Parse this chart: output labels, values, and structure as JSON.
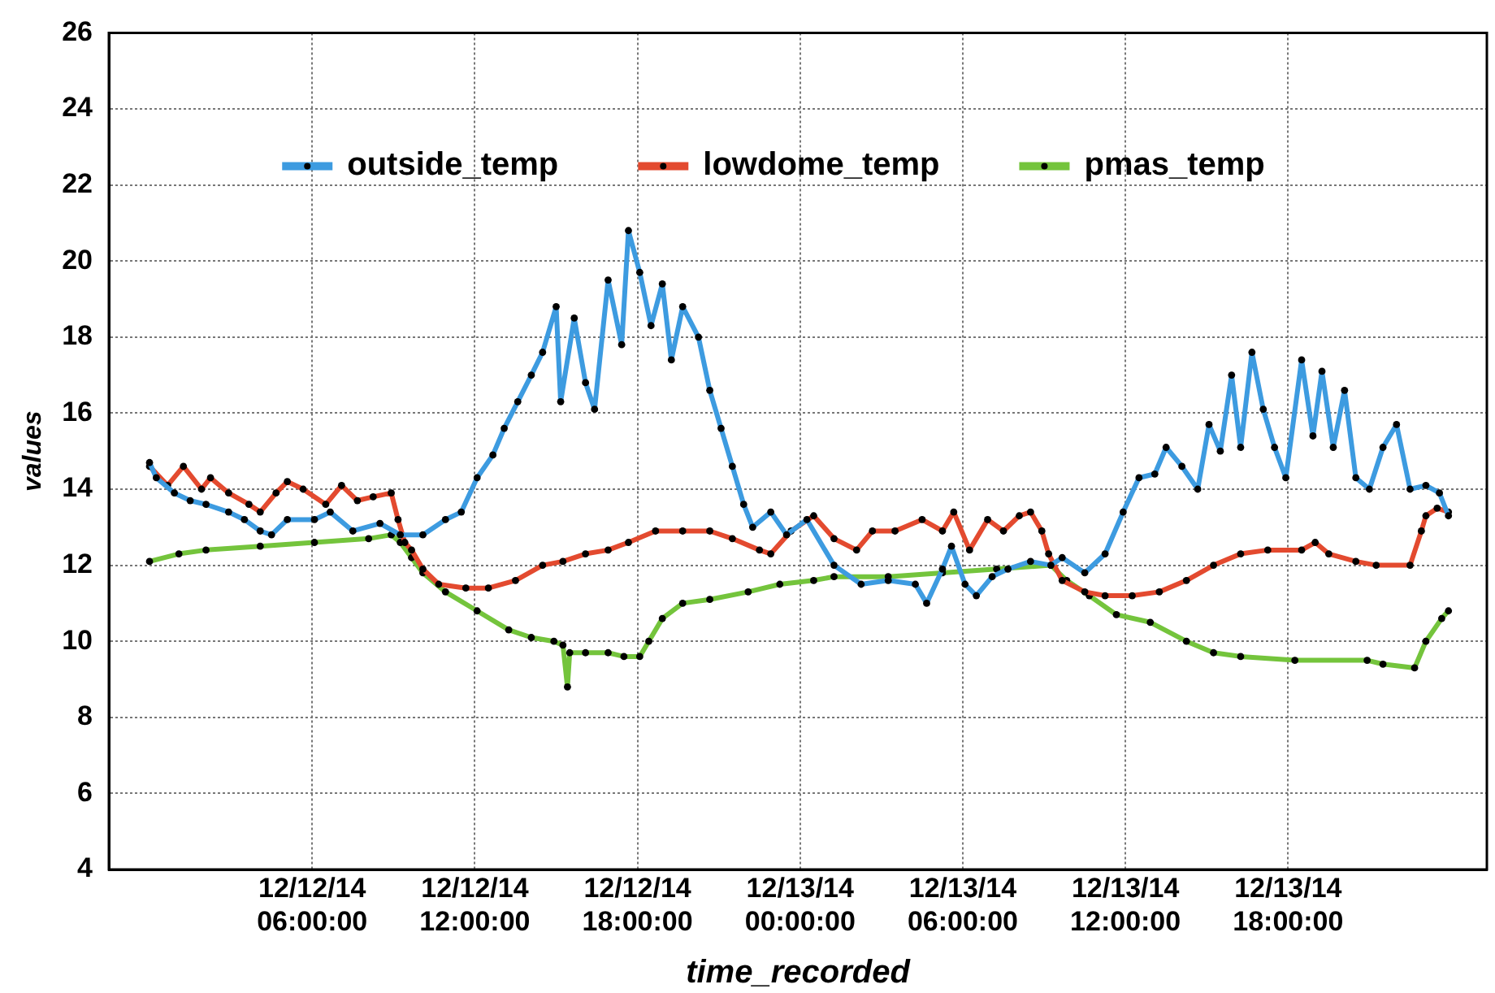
{
  "chart_data": {
    "type": "line",
    "xlabel": "time_recorded",
    "ylabel": "values",
    "xlim": [
      "--12-11T22:30",
      "--12-14T01:20"
    ],
    "xticks": [
      {
        "value": "--12-12T06:00",
        "label": "12/12/14 06:00:00"
      },
      {
        "value": "--12-12T12:00",
        "label": "12/12/14 12:00:00"
      },
      {
        "value": "--12-12T18:00",
        "label": "12/12/14 18:00:00"
      },
      {
        "value": "--12-13T00:00",
        "label": "12/13/14 00:00:00"
      },
      {
        "value": "--12-13T06:00",
        "label": "12/13/14 06:00:00"
      },
      {
        "value": "--12-13T12:00",
        "label": "12/13/14 12:00:00"
      },
      {
        "value": "--12-13T18:00",
        "label": "12/13/14 18:00:00"
      }
    ],
    "ylim": [
      4,
      26
    ],
    "yticks": [
      4,
      6,
      8,
      10,
      12,
      14,
      16,
      18,
      20,
      22,
      24,
      26
    ],
    "grid": true,
    "legend": "top",
    "marker": "circle",
    "series": [
      {
        "name": "outside_temp",
        "color": "#3d9be0",
        "x": [
          "--12-12T00:00",
          "--12-12T00:15",
          "--12-12T00:55",
          "--12-12T01:30",
          "--12-12T02:05",
          "--12-12T02:55",
          "--12-12T03:30",
          "--12-12T04:05",
          "--12-12T04:30",
          "--12-12T05:05",
          "--12-12T06:05",
          "--12-12T06:40",
          "--12-12T07:30",
          "--12-12T08:30",
          "--12-12T09:15",
          "--12-12T10:05",
          "--12-12T10:55",
          "--12-12T11:30",
          "--12-12T12:05",
          "--12-12T12:40",
          "--12-12T13:05",
          "--12-12T13:35",
          "--12-12T14:05",
          "--12-12T14:30",
          "--12-12T15:00",
          "--12-12T15:10",
          "--12-12T15:40",
          "--12-12T16:05",
          "--12-12T16:25",
          "--12-12T16:55",
          "--12-12T17:25",
          "--12-12T17:40",
          "--12-12T18:05",
          "--12-12T18:30",
          "--12-12T18:55",
          "--12-12T19:15",
          "--12-12T19:40",
          "--12-12T20:15",
          "--12-12T20:40",
          "--12-12T21:05",
          "--12-12T21:30",
          "--12-12T21:55",
          "--12-12T22:15",
          "--12-12T22:55",
          "--12-12T23:30",
          "--12-13T00:15",
          "--12-13T01:15",
          "--12-13T02:15",
          "--12-13T03:15",
          "--12-13T04:15",
          "--12-13T04:40",
          "--12-13T05:15",
          "--12-13T05:35",
          "--12-13T06:05",
          "--12-13T06:30",
          "--12-13T07:05",
          "--12-13T07:40",
          "--12-13T08:30",
          "--12-13T09:15",
          "--12-13T09:40",
          "--12-13T10:30",
          "--12-13T11:15",
          "--12-13T11:55",
          "--12-13T12:30",
          "--12-13T13:05",
          "--12-13T13:30",
          "--12-13T14:05",
          "--12-13T14:40",
          "--12-13T15:05",
          "--12-13T15:30",
          "--12-13T15:55",
          "--12-13T16:15",
          "--12-13T16:40",
          "--12-13T17:05",
          "--12-13T17:30",
          "--12-13T17:55",
          "--12-13T18:30",
          "--12-13T18:55",
          "--12-13T19:15",
          "--12-13T19:40",
          "--12-13T20:05",
          "--12-13T20:30",
          "--12-13T21:00",
          "--12-13T21:30",
          "--12-13T22:00",
          "--12-13T22:30",
          "--12-13T23:05",
          "--12-13T23:35",
          "--12-13T23:55"
        ],
        "values": [
          14.7,
          14.3,
          13.9,
          13.7,
          13.6,
          13.4,
          13.2,
          12.9,
          12.8,
          13.2,
          13.2,
          13.4,
          12.9,
          13.1,
          12.8,
          12.8,
          13.2,
          13.4,
          14.3,
          14.9,
          15.6,
          16.3,
          17.0,
          17.6,
          18.8,
          16.3,
          18.5,
          16.8,
          16.1,
          19.5,
          17.8,
          20.8,
          19.7,
          18.3,
          19.4,
          17.4,
          18.8,
          18.0,
          16.6,
          15.6,
          14.6,
          13.6,
          13.0,
          13.4,
          12.8,
          13.2,
          12.0,
          11.5,
          11.6,
          11.5,
          11.0,
          11.9,
          12.5,
          11.5,
          11.2,
          11.7,
          11.9,
          12.1,
          12.0,
          12.2,
          11.8,
          12.3,
          13.4,
          14.3,
          14.4,
          15.1,
          14.6,
          14.0,
          15.7,
          15.0,
          17.0,
          15.1,
          17.6,
          16.1,
          15.1,
          14.3,
          17.4,
          15.4,
          17.1,
          15.1,
          16.6,
          14.3,
          14.0,
          15.1,
          15.7,
          14.0,
          14.1,
          13.9,
          13.3
        ]
      },
      {
        "name": "lowdome_temp",
        "color": "#e34a2f",
        "x": [
          "--12-12T00:00",
          "--12-12T00:40",
          "--12-12T01:15",
          "--12-12T01:55",
          "--12-12T02:15",
          "--12-12T02:55",
          "--12-12T03:40",
          "--12-12T04:05",
          "--12-12T04:40",
          "--12-12T05:05",
          "--12-12T05:40",
          "--12-12T06:30",
          "--12-12T07:05",
          "--12-12T07:40",
          "--12-12T08:15",
          "--12-12T08:55",
          "--12-12T09:10",
          "--12-12T09:25",
          "--12-12T09:40",
          "--12-12T10:05",
          "--12-12T10:40",
          "--12-12T11:40",
          "--12-12T12:30",
          "--12-12T13:30",
          "--12-12T14:30",
          "--12-12T15:15",
          "--12-12T16:05",
          "--12-12T16:55",
          "--12-12T17:40",
          "--12-12T18:40",
          "--12-12T19:40",
          "--12-12T20:40",
          "--12-12T21:30",
          "--12-12T22:30",
          "--12-12T22:55",
          "--12-12T23:40",
          "--12-13T00:30",
          "--12-13T01:15",
          "--12-13T02:05",
          "--12-13T02:40",
          "--12-13T03:30",
          "--12-13T04:30",
          "--12-13T05:15",
          "--12-13T05:40",
          "--12-13T06:15",
          "--12-13T06:55",
          "--12-13T07:30",
          "--12-13T08:05",
          "--12-13T08:30",
          "--12-13T08:55",
          "--12-13T09:10",
          "--12-13T09:40",
          "--12-13T10:30",
          "--12-13T11:15",
          "--12-13T12:15",
          "--12-13T13:15",
          "--12-13T14:15",
          "--12-13T15:15",
          "--12-13T16:15",
          "--12-13T17:15",
          "--12-13T18:30",
          "--12-13T19:00",
          "--12-13T19:30",
          "--12-13T20:30",
          "--12-13T21:15",
          "--12-13T22:30",
          "--12-13T22:55",
          "--12-13T23:05",
          "--12-13T23:30",
          "--12-13T23:55"
        ],
        "values": [
          14.6,
          14.1,
          14.6,
          14.0,
          14.3,
          13.9,
          13.6,
          13.4,
          13.9,
          14.2,
          14.0,
          13.6,
          14.1,
          13.7,
          13.8,
          13.9,
          13.2,
          12.6,
          12.4,
          11.9,
          11.5,
          11.4,
          11.4,
          11.6,
          12.0,
          12.1,
          12.3,
          12.4,
          12.6,
          12.9,
          12.9,
          12.9,
          12.7,
          12.4,
          12.3,
          12.9,
          13.3,
          12.7,
          12.4,
          12.9,
          12.9,
          13.2,
          12.9,
          13.4,
          12.4,
          13.2,
          12.9,
          13.3,
          13.4,
          12.9,
          12.3,
          11.6,
          11.3,
          11.2,
          11.2,
          11.3,
          11.6,
          12.0,
          12.3,
          12.4,
          12.4,
          12.6,
          12.3,
          12.1,
          12.0,
          12.0,
          12.9,
          13.3,
          13.5,
          13.4
        ]
      },
      {
        "name": "pmas_temp",
        "color": "#74c43c",
        "x": [
          "--12-12T00:00",
          "--12-12T01:05",
          "--12-12T02:05",
          "--12-12T04:05",
          "--12-12T06:05",
          "--12-12T08:05",
          "--12-12T08:55",
          "--12-12T09:15",
          "--12-12T09:40",
          "--12-12T10:05",
          "--12-12T10:55",
          "--12-12T12:05",
          "--12-12T13:15",
          "--12-12T14:05",
          "--12-12T14:55",
          "--12-12T15:15",
          "--12-12T15:25",
          "--12-12T15:30",
          "--12-12T16:05",
          "--12-12T16:55",
          "--12-12T17:30",
          "--12-12T18:05",
          "--12-12T18:25",
          "--12-12T18:55",
          "--12-12T19:40",
          "--12-12T20:40",
          "--12-12T22:05",
          "--12-12T23:15",
          "--12-13T00:30",
          "--12-13T01:15",
          "--12-13T03:15",
          "--12-13T05:15",
          "--12-13T07:15",
          "--12-13T09:15",
          "--12-13T09:50",
          "--12-13T10:40",
          "--12-13T11:40",
          "--12-13T12:55",
          "--12-13T14:15",
          "--12-13T15:15",
          "--12-13T16:15",
          "--12-13T18:15",
          "--12-13T20:55",
          "--12-13T21:30",
          "--12-13T22:40",
          "--12-13T23:05",
          "--12-13T23:40",
          "--12-13T23:55"
        ],
        "values": [
          12.1,
          12.3,
          12.4,
          12.5,
          12.6,
          12.7,
          12.8,
          12.6,
          12.2,
          11.8,
          11.3,
          10.8,
          10.3,
          10.1,
          10.0,
          9.9,
          8.8,
          9.7,
          9.7,
          9.7,
          9.6,
          9.6,
          10.0,
          10.6,
          11.0,
          11.1,
          11.3,
          11.5,
          11.6,
          11.7,
          11.7,
          11.8,
          11.9,
          12.0,
          11.6,
          11.2,
          10.7,
          10.5,
          10.0,
          9.7,
          9.6,
          9.5,
          9.5,
          9.4,
          9.3,
          10.0,
          10.6,
          10.8
        ]
      }
    ]
  }
}
